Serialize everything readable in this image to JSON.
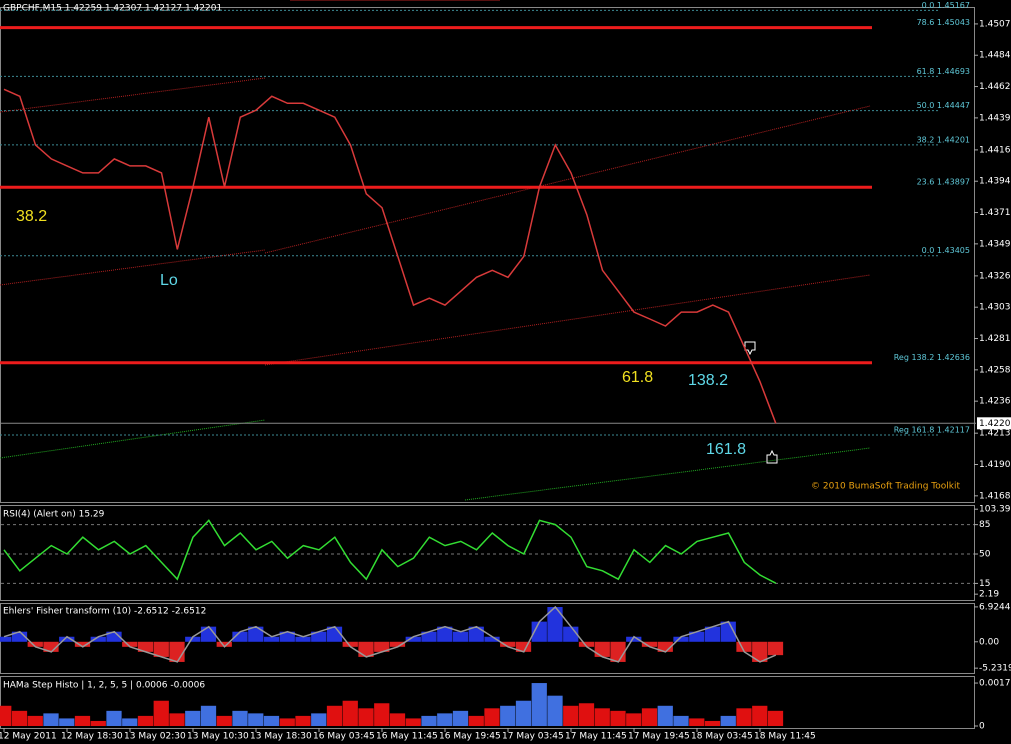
{
  "chart_data": [
    {
      "type": "line",
      "title": "GBPCHF,M15  1.42259 1.42307 1.42127 1.42201",
      "categories": [
        "12 May 2011",
        null,
        null,
        null,
        "12 May 18:30",
        null,
        null,
        null,
        "13 May 02:30",
        null,
        null,
        null,
        "13 May 10:30",
        null,
        null,
        null,
        "13 May 18:30",
        null,
        null,
        null,
        "16 May 03:45",
        null,
        null,
        null,
        "16 May 11:45",
        null,
        null,
        null,
        "16 May 19:45",
        null,
        null,
        null,
        "17 May 03:45",
        null,
        null,
        null,
        "17 May 11:45",
        null,
        null,
        null,
        "17 May 19:45",
        null,
        null,
        null,
        "18 May 03:45",
        null,
        null,
        null,
        "18 May 11:45",
        null
      ],
      "values": [
        1.446,
        1.4455,
        1.442,
        1.441,
        1.4405,
        1.44,
        1.44,
        1.441,
        1.4405,
        1.4405,
        1.44,
        1.4345,
        1.439,
        1.444,
        1.439,
        1.444,
        1.4445,
        1.4455,
        1.445,
        1.445,
        1.4445,
        1.444,
        1.442,
        1.4385,
        1.4375,
        1.434,
        1.4305,
        1.431,
        1.4305,
        1.4315,
        1.4325,
        1.433,
        1.4325,
        1.434,
        1.439,
        1.442,
        1.44,
        1.437,
        1.433,
        1.4315,
        1.43,
        1.4295,
        1.429,
        1.43,
        1.43,
        1.4305,
        1.43,
        1.4275,
        1.425,
        1.42201
      ],
      "color": "#d83a3a",
      "ylim": [
        1.4165,
        1.4517
      ],
      "yticks": [
        {
          "value": 1.4507,
          "label": "1.45070"
        },
        1.44845,
        {
          "value": 1.4462,
          "label": "1.44620"
        },
        1.44395,
        1.44165,
        {
          "value": 1.4394,
          "label": "1.43940"
        },
        1.43715,
        {
          "value": 1.4349,
          "label": "1.43490"
        },
        {
          "value": 1.4326,
          "label": "1.43260"
        },
        1.43035,
        {
          "value": 1.4281,
          "label": "1.42810"
        },
        1.42585,
        {
          "value": 1.4236,
          "label": "1.42360"
        },
        {
          "value": 1.4213,
          "label": "1.42130"
        },
        1.41905,
        {
          "value": 1.4168,
          "label": "1.41680"
        }
      ],
      "current_price": 1.42201,
      "levels": [
        {
          "label": "0.0 1.45167",
          "value": 1.45167
        },
        {
          "label": "78.6 1.45043",
          "value": 1.45043,
          "bold": true
        },
        {
          "label": "61.8 1.44693",
          "value": 1.44693
        },
        {
          "label": "50.0 1.44447",
          "value": 1.44447
        },
        {
          "label": "38.2 1.44201",
          "value": 1.44201
        },
        {
          "label": "23.6 1.43897",
          "value": 1.43897,
          "bold": true
        },
        {
          "label": "0.0 1.43405",
          "value": 1.43405
        },
        {
          "label": "Reg 138.2 1.42636",
          "value": 1.42636,
          "bold": true
        },
        {
          "label": "Reg 161.8 1.42117",
          "value": 1.42117
        }
      ],
      "annotations": [
        "38.2",
        "Lo",
        "61.8",
        "138.2",
        "161.8"
      ],
      "copyright": "© 2010 BumaSoft Trading Toolkit"
    },
    {
      "type": "line",
      "title": "RSI(4) (Alert on) 15.29",
      "values": [
        55,
        30,
        45,
        60,
        50,
        70,
        55,
        65,
        50,
        60,
        40,
        20,
        70,
        90,
        60,
        75,
        55,
        65,
        45,
        60,
        55,
        70,
        40,
        20,
        55,
        35,
        45,
        70,
        60,
        65,
        55,
        75,
        60,
        50,
        90,
        85,
        70,
        35,
        30,
        20,
        55,
        40,
        60,
        50,
        65,
        70,
        75,
        40,
        25,
        15.29
      ],
      "color": "#33dd33",
      "ylim": [
        0,
        106
      ],
      "yticks": [
        103.39,
        85,
        50,
        15,
        2.19
      ]
    },
    {
      "type": "bar",
      "title": "Ehlers' Fisher transform (10) -2.6512 -2.6512",
      "values": [
        1,
        2,
        -1,
        -2,
        1,
        -1,
        1,
        2,
        -1,
        -2,
        -3,
        -4,
        1,
        3,
        -1,
        2,
        3,
        1,
        2,
        1,
        2,
        3,
        -1,
        -3,
        -2,
        -1,
        1,
        2,
        3,
        2,
        3,
        1,
        -1,
        -2,
        4,
        6.9,
        3,
        -1,
        -3,
        -4,
        1,
        -1,
        -2,
        1,
        2,
        3,
        4,
        -2,
        -4,
        -2.6512
      ],
      "positive_color": "#2233dd",
      "negative_color": "#dd2222",
      "ylim": [
        -5.6,
        7.3
      ],
      "yticks": [
        6.9244,
        {
          "value": 0,
          "label": "0.00"
        },
        -5.2319
      ]
    },
    {
      "type": "bar",
      "title": "HAMa Step Histo | 1, 2, 5, 5 | 0.0006 -0.0006",
      "values": [
        0.0008,
        0.0006,
        0.0004,
        0.0005,
        0.0003,
        0.0004,
        0.0002,
        0.0006,
        0.0003,
        0.0004,
        0.001,
        0.0005,
        0.0006,
        0.0008,
        0.0004,
        0.0006,
        0.0005,
        0.0004,
        0.0003,
        0.0004,
        0.0005,
        0.0008,
        0.001,
        0.0007,
        0.0009,
        0.0005,
        0.0003,
        0.0004,
        0.0005,
        0.0006,
        0.0004,
        0.0007,
        0.0008,
        0.001,
        0.0017,
        0.0012,
        0.0008,
        0.0009,
        0.0007,
        0.0006,
        0.0005,
        0.0007,
        0.0008,
        0.0004,
        0.0003,
        0.0002,
        0.0004,
        0.0007,
        0.0008,
        0.0006
      ],
      "colors": [
        "#e01010",
        "#e01010",
        "#e01010",
        "#4070e0",
        "#4070e0",
        "#e01010",
        "#e01010",
        "#4070e0",
        "#4070e0",
        "#e01010",
        "#e01010",
        "#e01010",
        "#4070e0",
        "#4070e0",
        "#e01010",
        "#4070e0",
        "#4070e0",
        "#4070e0",
        "#e01010",
        "#e01010",
        "#4070e0",
        "#e01010",
        "#e01010",
        "#e01010",
        "#e01010",
        "#e01010",
        "#e01010",
        "#4070e0",
        "#4070e0",
        "#4070e0",
        "#e01010",
        "#e01010",
        "#4070e0",
        "#4070e0",
        "#4070e0",
        "#4070e0",
        "#e01010",
        "#e01010",
        "#e01010",
        "#e01010",
        "#e01010",
        "#e01010",
        "#4070e0",
        "#4070e0",
        "#e01010",
        "#e01010",
        "#4070e0",
        "#e01010",
        "#e01010",
        "#e01010"
      ],
      "ylim": [
        0,
        0.0019
      ],
      "yticks": [
        0.0017,
        0
      ]
    }
  ]
}
